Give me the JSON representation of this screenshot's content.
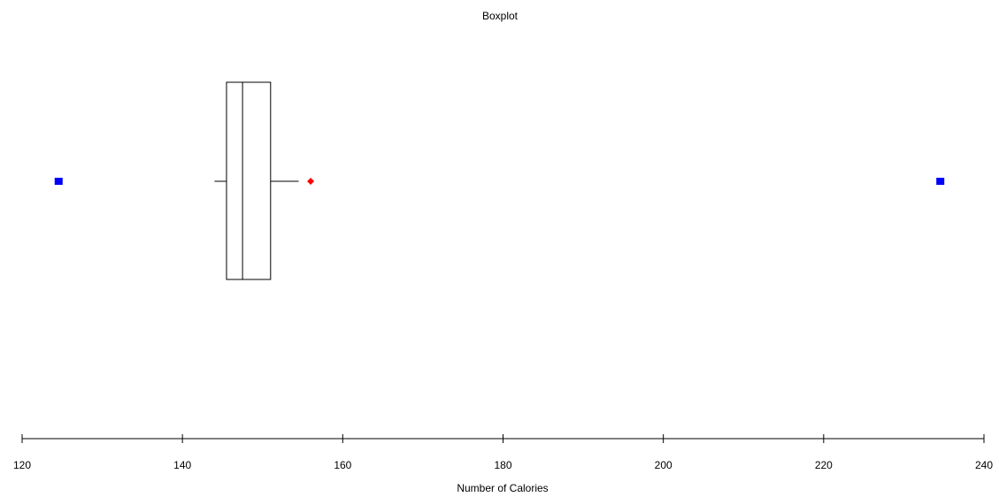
{
  "chart_data": {
    "type": "boxplot",
    "title": "Boxplot",
    "xlabel": "Number of Calories",
    "xlim": [
      120,
      240
    ],
    "ticks": [
      120,
      140,
      160,
      180,
      200,
      220,
      240
    ],
    "tick_labels": [
      "120",
      "140",
      "160",
      "180",
      "200",
      "220",
      "240"
    ],
    "box": {
      "whisker_low": 144,
      "q1": 145.5,
      "median": 147.5,
      "q3": 151,
      "whisker_high": 154.5
    },
    "mild_outliers": [
      156
    ],
    "extreme_outliers": [
      124.5,
      234.5
    ],
    "colors": {
      "axis": "#000000",
      "box": "#000000",
      "mild_outlier": "#ff0000",
      "extreme_outlier": "#0000ff"
    }
  }
}
